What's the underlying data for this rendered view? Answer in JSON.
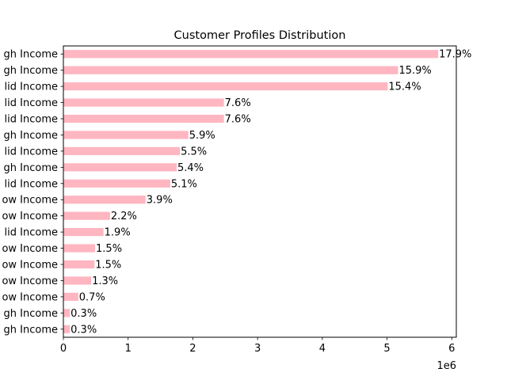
{
  "chart_data": {
    "type": "bar",
    "orientation": "horizontal",
    "title": "Customer Profiles Distribution",
    "xlabel": "",
    "ylabel": "",
    "x_offset_label": "1e6",
    "x_scale": 1000000,
    "xlim": [
      0,
      6.07
    ],
    "x_ticks": [
      0,
      1,
      2,
      3,
      4,
      5,
      6
    ],
    "grid": false,
    "legend": "none",
    "bar_color": "#ffb6c1",
    "categories": [
      "gh Income",
      "gh Income",
      "lid Income",
      "lid Income",
      "lid Income",
      "gh Income",
      "lid Income",
      "gh Income",
      "lid Income",
      "ow Income",
      "ow Income",
      "lid Income",
      "ow Income",
      "ow Income",
      "ow Income",
      "ow Income",
      "gh Income",
      "gh Income"
    ],
    "values": [
      5.79,
      5.17,
      5.01,
      2.48,
      2.48,
      1.93,
      1.8,
      1.75,
      1.65,
      1.27,
      0.72,
      0.62,
      0.49,
      0.48,
      0.43,
      0.23,
      0.1,
      0.1
    ],
    "labels": [
      "17.9%",
      "15.9%",
      "15.4%",
      "7.6%",
      "7.6%",
      "5.9%",
      "5.5%",
      "5.4%",
      "5.1%",
      "3.9%",
      "2.2%",
      "1.9%",
      "1.5%",
      "1.5%",
      "1.3%",
      "0.7%",
      "0.3%",
      "0.3%"
    ]
  }
}
